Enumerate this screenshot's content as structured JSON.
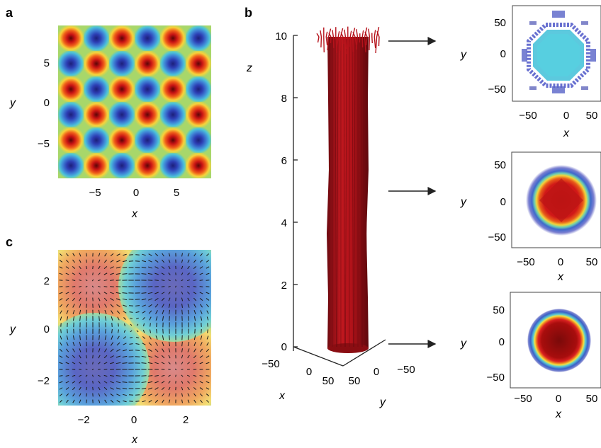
{
  "panels": {
    "a": {
      "label": "a",
      "xlabel": "x",
      "ylabel": "y",
      "xticks": [
        "−5",
        "0",
        "5"
      ],
      "yticks": [
        "5",
        "0",
        "−5"
      ]
    },
    "b": {
      "label": "b",
      "xlabel": "x",
      "ylabel": "y",
      "zlabel": "z",
      "zticks": [
        "0",
        "2",
        "4",
        "6",
        "8",
        "10"
      ],
      "xticks": [
        "−50",
        "0",
        "50"
      ],
      "yticks": [
        "50",
        "0",
        "−50"
      ]
    },
    "c": {
      "label": "c",
      "xlabel": "x",
      "ylabel": "y",
      "xticks": [
        "−2",
        "0",
        "2"
      ],
      "yticks": [
        "2",
        "0",
        "−2"
      ]
    },
    "slices": [
      {
        "xlabel": "x",
        "ylabel": "y",
        "xticks": [
          "−50",
          "0",
          "50"
        ],
        "yticks": [
          "50",
          "0",
          "−50"
        ]
      },
      {
        "xlabel": "x",
        "ylabel": "y",
        "xticks": [
          "−50",
          "0",
          "50"
        ],
        "yticks": [
          "50",
          "0",
          "−50"
        ]
      },
      {
        "xlabel": "x",
        "ylabel": "y",
        "xticks": [
          "−50",
          "0",
          "50"
        ],
        "yticks": [
          "50",
          "0",
          "−50"
        ]
      }
    ]
  },
  "colors": {
    "hot": "#d7191c",
    "cold": "#2c3cb0",
    "mid": "#9bd36a",
    "column": "#b5121b"
  },
  "chart_data": [
    {
      "type": "heatmap",
      "panel": "a",
      "xlim": [
        -9,
        9
      ],
      "ylim": [
        -9,
        9
      ],
      "grid": [
        6,
        6
      ],
      "pattern": "checkerboard"
    },
    {
      "type": "surface",
      "panel": "b",
      "zlim": [
        0,
        10
      ],
      "xlim": [
        -50,
        50
      ],
      "ylim": [
        -50,
        50
      ]
    },
    {
      "type": "heatmap",
      "panel": "c",
      "xlim": [
        -3,
        3
      ],
      "ylim": [
        -3,
        3
      ],
      "grid": [
        2,
        2
      ],
      "overlay": "vector-field"
    },
    {
      "type": "heatmap",
      "panel": "b-slice-top",
      "xlim": [
        -70,
        70
      ],
      "ylim": [
        -70,
        70
      ],
      "profile": "octagon"
    },
    {
      "type": "heatmap",
      "panel": "b-slice-mid",
      "xlim": [
        -70,
        70
      ],
      "ylim": [
        -70,
        70
      ],
      "profile": "ring"
    },
    {
      "type": "heatmap",
      "panel": "b-slice-bottom",
      "xlim": [
        -70,
        70
      ],
      "ylim": [
        -70,
        70
      ],
      "profile": "disk"
    }
  ]
}
